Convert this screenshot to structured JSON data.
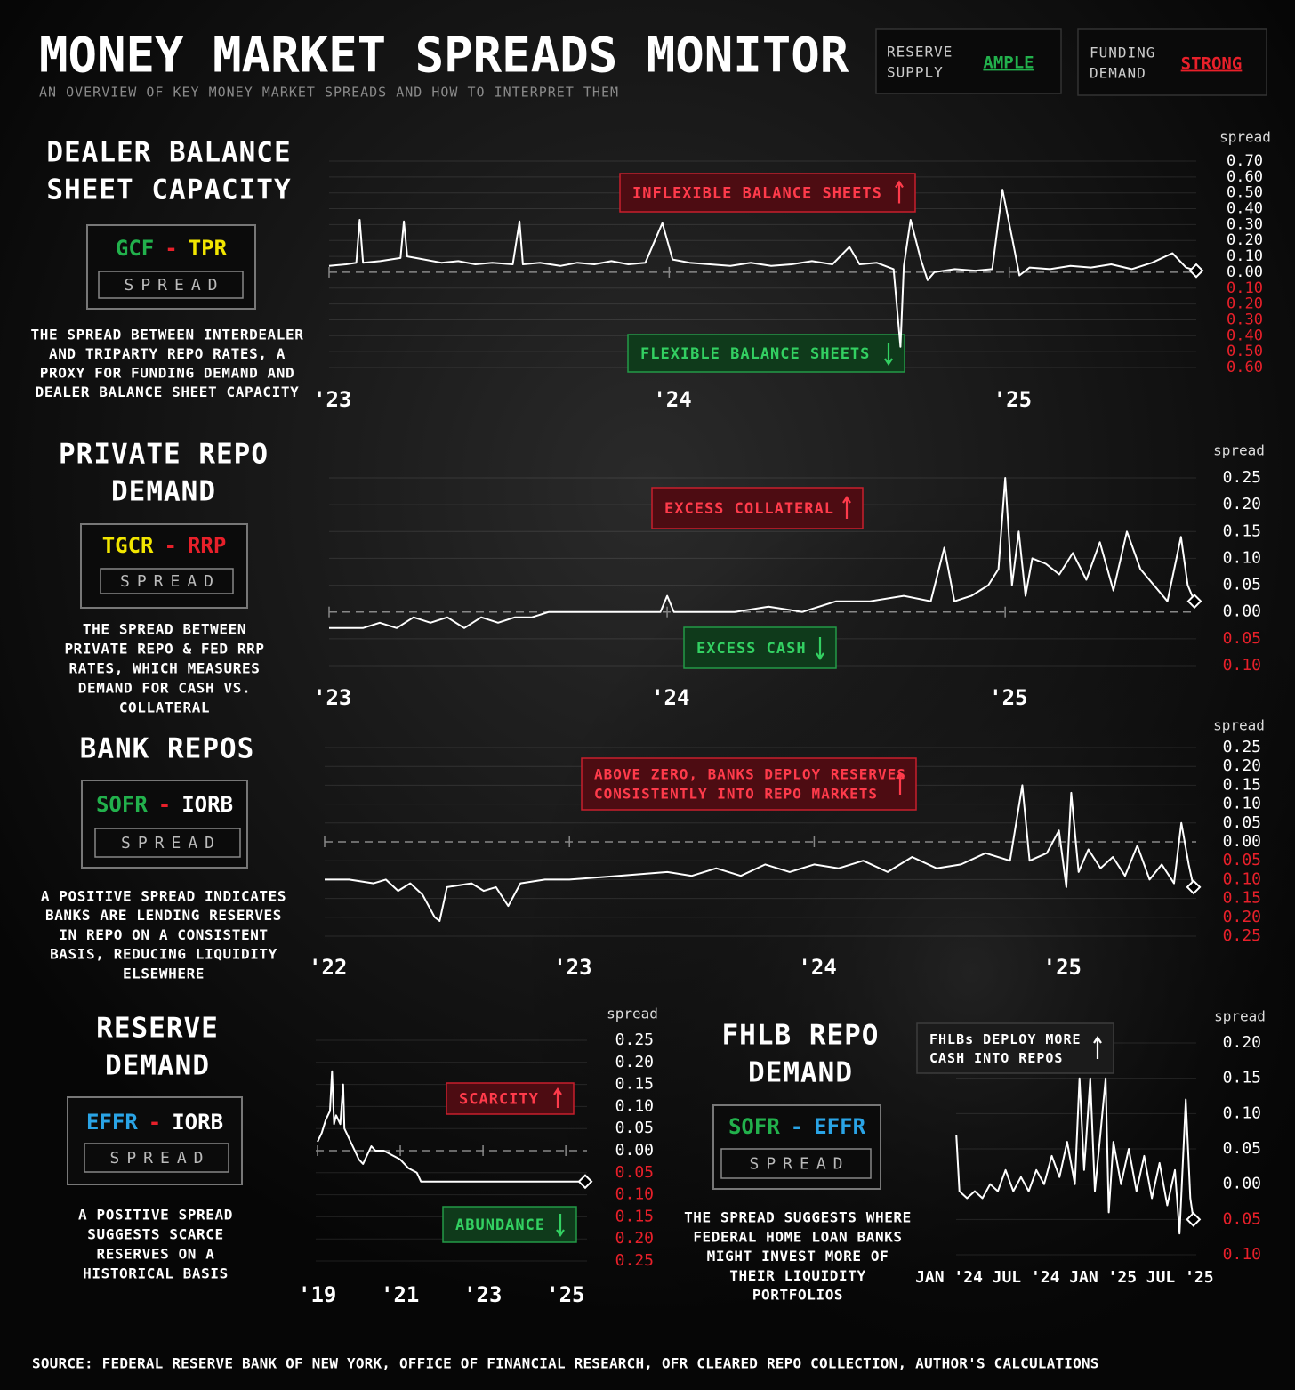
{
  "title": "MONEY MARKET SPREADS MONITOR",
  "subtitle": "AN OVERVIEW OF KEY MONEY MARKET SPREADS AND HOW TO INTERPRET THEM",
  "status": [
    {
      "label": [
        "RESERVE",
        "SUPPLY"
      ],
      "value": "AMPLE",
      "color": "#22b14c"
    },
    {
      "label": [
        "FUNDING",
        "DEMAND"
      ],
      "value": "STRONG",
      "color": "#e8202a"
    }
  ],
  "source": "SOURCE: FEDERAL RESERVE BANK OF NEW YORK, OFFICE OF FINANCIAL RESEARCH, OFR CLEARED REPO COLLECTION, AUTHOR'S CALCULATIONS",
  "chart_data": [
    {
      "type": "line",
      "title": [
        "DEALER BALANCE",
        "SHEET CAPACITY"
      ],
      "formula": [
        {
          "text": "GCF",
          "color": "#22b14c"
        },
        {
          "text": "-",
          "color": "#e8202a"
        },
        {
          "text": "TPR",
          "color": "#f2e600"
        }
      ],
      "formula_caption": "SPREAD",
      "description": [
        "THE SPREAD BETWEEN INTERDEALER",
        "AND TRIPARTY REPO RATES, A",
        "PROXY FOR FUNDING DEMAND AND",
        "DEALER BALANCE SHEET CAPACITY"
      ],
      "y_label": "spread",
      "x": [
        2023.0,
        2023.05,
        2023.08,
        2023.09,
        2023.1,
        2023.15,
        2023.21,
        2023.22,
        2023.23,
        2023.28,
        2023.33,
        2023.38,
        2023.43,
        2023.48,
        2023.54,
        2023.56,
        2023.57,
        2023.62,
        2023.68,
        2023.73,
        2023.78,
        2023.83,
        2023.88,
        2023.93,
        2023.98,
        2024.01,
        2024.06,
        2024.12,
        2024.18,
        2024.24,
        2024.3,
        2024.36,
        2024.42,
        2024.48,
        2024.53,
        2024.56,
        2024.61,
        2024.66,
        2024.68,
        2024.69,
        2024.71,
        2024.74,
        2024.76,
        2024.78,
        2024.84,
        2024.9,
        2024.95,
        2024.98,
        2025.01,
        2025.03,
        2025.06,
        2025.12,
        2025.18,
        2025.24,
        2025.3,
        2025.36,
        2025.42,
        2025.48,
        2025.52,
        2025.55
      ],
      "series": [
        {
          "name": "GCF - TPR",
          "color": "#ffffff",
          "values": [
            0.04,
            0.05,
            0.06,
            0.33,
            0.06,
            0.07,
            0.09,
            0.32,
            0.1,
            0.08,
            0.06,
            0.07,
            0.05,
            0.06,
            0.05,
            0.32,
            0.05,
            0.06,
            0.04,
            0.06,
            0.05,
            0.07,
            0.05,
            0.06,
            0.31,
            0.08,
            0.06,
            0.05,
            0.04,
            0.06,
            0.04,
            0.05,
            0.07,
            0.05,
            0.16,
            0.05,
            0.06,
            0.02,
            -0.47,
            0.04,
            0.33,
            0.08,
            -0.05,
            0.0,
            0.02,
            0.01,
            0.02,
            0.52,
            0.2,
            -0.02,
            0.03,
            0.02,
            0.04,
            0.03,
            0.05,
            0.02,
            0.06,
            0.12,
            0.03,
            0.01
          ]
        }
      ],
      "xlim": [
        2023,
        2025.55
      ],
      "xticks": [
        {
          "value": 2023,
          "label": "'23"
        },
        {
          "value": 2024,
          "label": "'24"
        },
        {
          "value": 2025,
          "label": "'25"
        }
      ],
      "ylim": [
        -0.6,
        0.7
      ],
      "yticks": [
        {
          "value": 0.7,
          "label": "0.70"
        },
        {
          "value": 0.6,
          "label": "0.60"
        },
        {
          "value": 0.5,
          "label": "0.50"
        },
        {
          "value": 0.4,
          "label": "0.40"
        },
        {
          "value": 0.3,
          "label": "0.30"
        },
        {
          "value": 0.2,
          "label": "0.20"
        },
        {
          "value": 0.1,
          "label": "0.10"
        },
        {
          "value": 0,
          "label": "0.00"
        },
        {
          "value": -0.1,
          "label": "0.10"
        },
        {
          "value": -0.2,
          "label": "0.20"
        },
        {
          "value": -0.3,
          "label": "0.30"
        },
        {
          "value": -0.4,
          "label": "0.40"
        },
        {
          "value": -0.5,
          "label": "0.50"
        },
        {
          "value": -0.6,
          "label": "0.60"
        }
      ],
      "negative_tick_color": "#e8202a",
      "grid": true,
      "zero_line": true,
      "annotations": [
        {
          "lines": [
            "INFLEXIBLE BALANCE SHEETS"
          ],
          "style": "red",
          "arrow": "up"
        },
        {
          "lines": [
            "FLEXIBLE BALANCE SHEETS"
          ],
          "style": "green",
          "arrow": "down"
        }
      ]
    },
    {
      "type": "line",
      "title": [
        "PRIVATE REPO",
        "DEMAND"
      ],
      "formula": [
        {
          "text": "TGCR",
          "color": "#f2e600"
        },
        {
          "text": "-",
          "color": "#e8202a"
        },
        {
          "text": "RRP",
          "color": "#e8202a"
        }
      ],
      "formula_caption": "SPREAD",
      "description": [
        "THE SPREAD BETWEEN",
        "PRIVATE REPO & FED RRP",
        "RATES, WHICH MEASURES",
        "DEMAND FOR CASH VS.",
        "COLLATERAL"
      ],
      "y_label": "spread",
      "x": [
        2023.0,
        2023.1,
        2023.15,
        2023.2,
        2023.25,
        2023.3,
        2023.35,
        2023.4,
        2023.45,
        2023.5,
        2023.55,
        2023.6,
        2023.65,
        2023.8,
        2023.9,
        2023.98,
        2024.0,
        2024.02,
        2024.2,
        2024.3,
        2024.4,
        2024.5,
        2024.6,
        2024.7,
        2024.78,
        2024.82,
        2024.85,
        2024.9,
        2024.95,
        2024.98,
        2025.0,
        2025.02,
        2025.04,
        2025.06,
        2025.08,
        2025.12,
        2025.16,
        2025.2,
        2025.24,
        2025.28,
        2025.32,
        2025.36,
        2025.4,
        2025.44,
        2025.48,
        2025.52,
        2025.54,
        2025.56
      ],
      "series": [
        {
          "name": "TGCR - RRP",
          "color": "#ffffff",
          "values": [
            -0.03,
            -0.03,
            -0.02,
            -0.03,
            -0.01,
            -0.02,
            -0.01,
            -0.03,
            -0.01,
            -0.02,
            -0.01,
            -0.01,
            0.0,
            0.0,
            0.0,
            0.0,
            0.03,
            0.0,
            0.0,
            0.01,
            0.0,
            0.02,
            0.02,
            0.03,
            0.02,
            0.12,
            0.02,
            0.03,
            0.05,
            0.08,
            0.25,
            0.05,
            0.15,
            0.03,
            0.1,
            0.09,
            0.07,
            0.11,
            0.06,
            0.13,
            0.04,
            0.15,
            0.08,
            0.05,
            0.02,
            0.14,
            0.05,
            0.02
          ]
        }
      ],
      "xlim": [
        2023,
        2025.56
      ],
      "xticks": [
        {
          "value": 2023,
          "label": "'23"
        },
        {
          "value": 2024,
          "label": "'24"
        },
        {
          "value": 2025,
          "label": "'25"
        }
      ],
      "ylim": [
        -0.1,
        0.25
      ],
      "yticks": [
        {
          "value": 0.25,
          "label": "0.25"
        },
        {
          "value": 0.2,
          "label": "0.20"
        },
        {
          "value": 0.15,
          "label": "0.15"
        },
        {
          "value": 0.1,
          "label": "0.10"
        },
        {
          "value": 0.05,
          "label": "0.05"
        },
        {
          "value": 0,
          "label": "0.00"
        },
        {
          "value": -0.05,
          "label": "0.05"
        },
        {
          "value": -0.1,
          "label": "0.10"
        }
      ],
      "negative_tick_color": "#e8202a",
      "grid": true,
      "zero_line": true,
      "annotations": [
        {
          "lines": [
            "EXCESS COLLATERAL"
          ],
          "style": "red",
          "arrow": "up"
        },
        {
          "lines": [
            "EXCESS CASH"
          ],
          "style": "green",
          "arrow": "down"
        }
      ]
    },
    {
      "type": "line",
      "title": [
        "BANK REPOS"
      ],
      "formula": [
        {
          "text": "SOFR",
          "color": "#22b14c"
        },
        {
          "text": "-",
          "color": "#e8202a"
        },
        {
          "text": "IORB",
          "color": "#ffffff"
        }
      ],
      "formula_caption": "SPREAD",
      "description": [
        "A POSITIVE SPREAD INDICATES",
        "BANKS ARE LENDING RESERVES",
        "IN REPO ON A CONSISTENT",
        "BASIS, REDUCING LIQUIDITY",
        "ELSEWHERE"
      ],
      "y_label": "spread",
      "x": [
        2022.0,
        2022.1,
        2022.2,
        2022.25,
        2022.3,
        2022.35,
        2022.4,
        2022.45,
        2022.47,
        2022.5,
        2022.6,
        2022.65,
        2022.7,
        2022.75,
        2022.8,
        2022.9,
        2023.0,
        2023.2,
        2023.4,
        2023.5,
        2023.6,
        2023.7,
        2023.8,
        2023.9,
        2024.0,
        2024.1,
        2024.2,
        2024.3,
        2024.4,
        2024.5,
        2024.6,
        2024.7,
        2024.8,
        2024.85,
        2024.88,
        2024.95,
        2025.0,
        2025.03,
        2025.05,
        2025.08,
        2025.12,
        2025.17,
        2025.22,
        2025.27,
        2025.32,
        2025.37,
        2025.42,
        2025.47,
        2025.5,
        2025.53,
        2025.55
      ],
      "series": [
        {
          "name": "SOFR - IORB",
          "color": "#ffffff",
          "values": [
            -0.1,
            -0.1,
            -0.11,
            -0.1,
            -0.13,
            -0.11,
            -0.14,
            -0.2,
            -0.21,
            -0.12,
            -0.11,
            -0.13,
            -0.12,
            -0.17,
            -0.11,
            -0.1,
            -0.1,
            -0.09,
            -0.08,
            -0.09,
            -0.07,
            -0.09,
            -0.06,
            -0.08,
            -0.06,
            -0.07,
            -0.05,
            -0.08,
            -0.04,
            -0.07,
            -0.06,
            -0.03,
            -0.05,
            0.15,
            -0.05,
            -0.03,
            0.03,
            -0.12,
            0.13,
            -0.08,
            -0.02,
            -0.07,
            -0.04,
            -0.09,
            -0.01,
            -0.1,
            -0.06,
            -0.11,
            0.05,
            -0.06,
            -0.12
          ]
        }
      ],
      "xlim": [
        2022,
        2025.55
      ],
      "xticks": [
        {
          "value": 2022,
          "label": "'22"
        },
        {
          "value": 2023,
          "label": "'23"
        },
        {
          "value": 2024,
          "label": "'24"
        },
        {
          "value": 2025,
          "label": "'25"
        }
      ],
      "ylim": [
        -0.25,
        0.25
      ],
      "yticks": [
        {
          "value": 0.25,
          "label": "0.25"
        },
        {
          "value": 0.2,
          "label": "0.20"
        },
        {
          "value": 0.15,
          "label": "0.15"
        },
        {
          "value": 0.1,
          "label": "0.10"
        },
        {
          "value": 0.05,
          "label": "0.05"
        },
        {
          "value": 0,
          "label": "0.00"
        },
        {
          "value": -0.05,
          "label": "0.05"
        },
        {
          "value": -0.1,
          "label": "0.10"
        },
        {
          "value": -0.15,
          "label": "0.15"
        },
        {
          "value": -0.2,
          "label": "0.20"
        },
        {
          "value": -0.25,
          "label": "0.25"
        }
      ],
      "negative_tick_color": "#e8202a",
      "grid": true,
      "zero_line": true,
      "annotations": [
        {
          "lines": [
            "ABOVE ZERO, BANKS DEPLOY RESERVES",
            "CONSISTENTLY INTO REPO MARKETS"
          ],
          "style": "red",
          "arrow": "up"
        }
      ]
    },
    {
      "type": "line",
      "title": [
        "RESERVE",
        "DEMAND"
      ],
      "formula": [
        {
          "text": "EFFR",
          "color": "#2aa4e6"
        },
        {
          "text": "-",
          "color": "#e8202a"
        },
        {
          "text": "IORB",
          "color": "#ffffff"
        }
      ],
      "formula_caption": "SPREAD",
      "description": [
        "A POSITIVE SPREAD",
        "SUGGESTS SCARCE",
        "RESERVES ON A",
        "HISTORICAL BASIS"
      ],
      "y_label": "spread",
      "x": [
        2019.0,
        2019.1,
        2019.2,
        2019.3,
        2019.35,
        2019.4,
        2019.45,
        2019.55,
        2019.62,
        2019.65,
        2019.7,
        2019.8,
        2019.9,
        2020.0,
        2020.1,
        2020.2,
        2020.3,
        2020.4,
        2020.6,
        2020.8,
        2021.0,
        2021.2,
        2021.4,
        2021.5,
        2021.6,
        2021.8,
        2022.0,
        2023.0,
        2024.0,
        2025.0,
        2025.47
      ],
      "series": [
        {
          "name": "EFFR - IORB",
          "color": "#ffffff",
          "values": [
            0.02,
            0.04,
            0.07,
            0.09,
            0.18,
            0.06,
            0.08,
            0.06,
            0.15,
            0.05,
            0.04,
            0.02,
            0.0,
            -0.02,
            -0.03,
            -0.01,
            0.01,
            0.0,
            0.0,
            -0.01,
            -0.02,
            -0.04,
            -0.05,
            -0.07,
            -0.07,
            -0.07,
            -0.07,
            -0.07,
            -0.07,
            -0.07,
            -0.07
          ]
        }
      ],
      "xlim": [
        2019,
        2025.47
      ],
      "xticks": [
        {
          "value": 2019,
          "label": "'19"
        },
        {
          "value": 2021,
          "label": "'21"
        },
        {
          "value": 2023,
          "label": "'23"
        },
        {
          "value": 2025,
          "label": "'25"
        }
      ],
      "ylim": [
        -0.25,
        0.25
      ],
      "yticks": [
        {
          "value": 0.25,
          "label": "0.25"
        },
        {
          "value": 0.2,
          "label": "0.20"
        },
        {
          "value": 0.15,
          "label": "0.15"
        },
        {
          "value": 0.1,
          "label": "0.10"
        },
        {
          "value": 0.05,
          "label": "0.05"
        },
        {
          "value": 0,
          "label": "0.00"
        },
        {
          "value": -0.05,
          "label": "0.05"
        },
        {
          "value": -0.1,
          "label": "0.10"
        },
        {
          "value": -0.15,
          "label": "0.15"
        },
        {
          "value": -0.2,
          "label": "0.20"
        },
        {
          "value": -0.25,
          "label": "0.25"
        }
      ],
      "negative_tick_color": "#e8202a",
      "grid": true,
      "zero_line": true,
      "annotations": [
        {
          "lines": [
            "SCARCITY"
          ],
          "style": "red",
          "arrow": "up"
        },
        {
          "lines": [
            "ABUNDANCE"
          ],
          "style": "green",
          "arrow": "down"
        }
      ]
    },
    {
      "type": "line",
      "title": [
        "FHLB REPO",
        "DEMAND"
      ],
      "formula": [
        {
          "text": "SOFR",
          "color": "#22b14c"
        },
        {
          "text": "-",
          "color": "#2aa4e6"
        },
        {
          "text": "EFFR",
          "color": "#2aa4e6"
        }
      ],
      "formula_caption": "SPREAD",
      "description": [
        "THE SPREAD SUGGESTS WHERE",
        "FEDERAL HOME LOAN BANKS",
        "MIGHT INVEST MORE OF",
        "THEIR LIQUIDITY",
        "PORTFOLIOS"
      ],
      "y_label": "spread",
      "x": [
        2024.03,
        2024.05,
        2024.1,
        2024.15,
        2024.2,
        2024.25,
        2024.3,
        2024.35,
        2024.4,
        2024.45,
        2024.5,
        2024.55,
        2024.6,
        2024.65,
        2024.7,
        2024.75,
        2024.8,
        2024.83,
        2024.86,
        2024.9,
        2024.93,
        2024.97,
        2025.0,
        2025.02,
        2025.05,
        2025.1,
        2025.15,
        2025.2,
        2025.25,
        2025.3,
        2025.35,
        2025.4,
        2025.45,
        2025.48,
        2025.52,
        2025.55,
        2025.57
      ],
      "series": [
        {
          "name": "SOFR - EFFR",
          "color": "#ffffff",
          "values": [
            0.07,
            -0.01,
            -0.02,
            -0.01,
            -0.02,
            0.0,
            -0.01,
            0.02,
            -0.01,
            0.01,
            -0.01,
            0.02,
            0.0,
            0.04,
            0.01,
            0.06,
            0.0,
            0.15,
            0.02,
            0.15,
            -0.01,
            0.08,
            0.15,
            -0.04,
            0.06,
            0.0,
            0.05,
            -0.01,
            0.04,
            -0.02,
            0.03,
            -0.03,
            0.02,
            -0.07,
            0.12,
            -0.02,
            -0.05
          ]
        }
      ],
      "xlim": [
        2024,
        2025.6
      ],
      "xticks": [
        {
          "value": 2024,
          "label": "JAN '24"
        },
        {
          "value": 2024.5,
          "label": "JUL '24"
        },
        {
          "value": 2025,
          "label": "JAN '25"
        },
        {
          "value": 2025.5,
          "label": "JUL '25"
        }
      ],
      "ylim": [
        -0.1,
        0.2
      ],
      "yticks": [
        {
          "value": 0.2,
          "label": "0.20"
        },
        {
          "value": 0.15,
          "label": "0.15"
        },
        {
          "value": 0.1,
          "label": "0.10"
        },
        {
          "value": 0.05,
          "label": "0.05"
        },
        {
          "value": 0,
          "label": "0.00"
        },
        {
          "value": -0.05,
          "label": "0.05"
        },
        {
          "value": -0.1,
          "label": "0.10"
        }
      ],
      "negative_tick_color": "#e8202a",
      "grid": true,
      "zero_line": false,
      "annotations": [
        {
          "lines": [
            "FHLBs DEPLOY MORE",
            "CASH INTO REPOS"
          ],
          "style": "gray",
          "arrow": "up"
        }
      ]
    }
  ]
}
